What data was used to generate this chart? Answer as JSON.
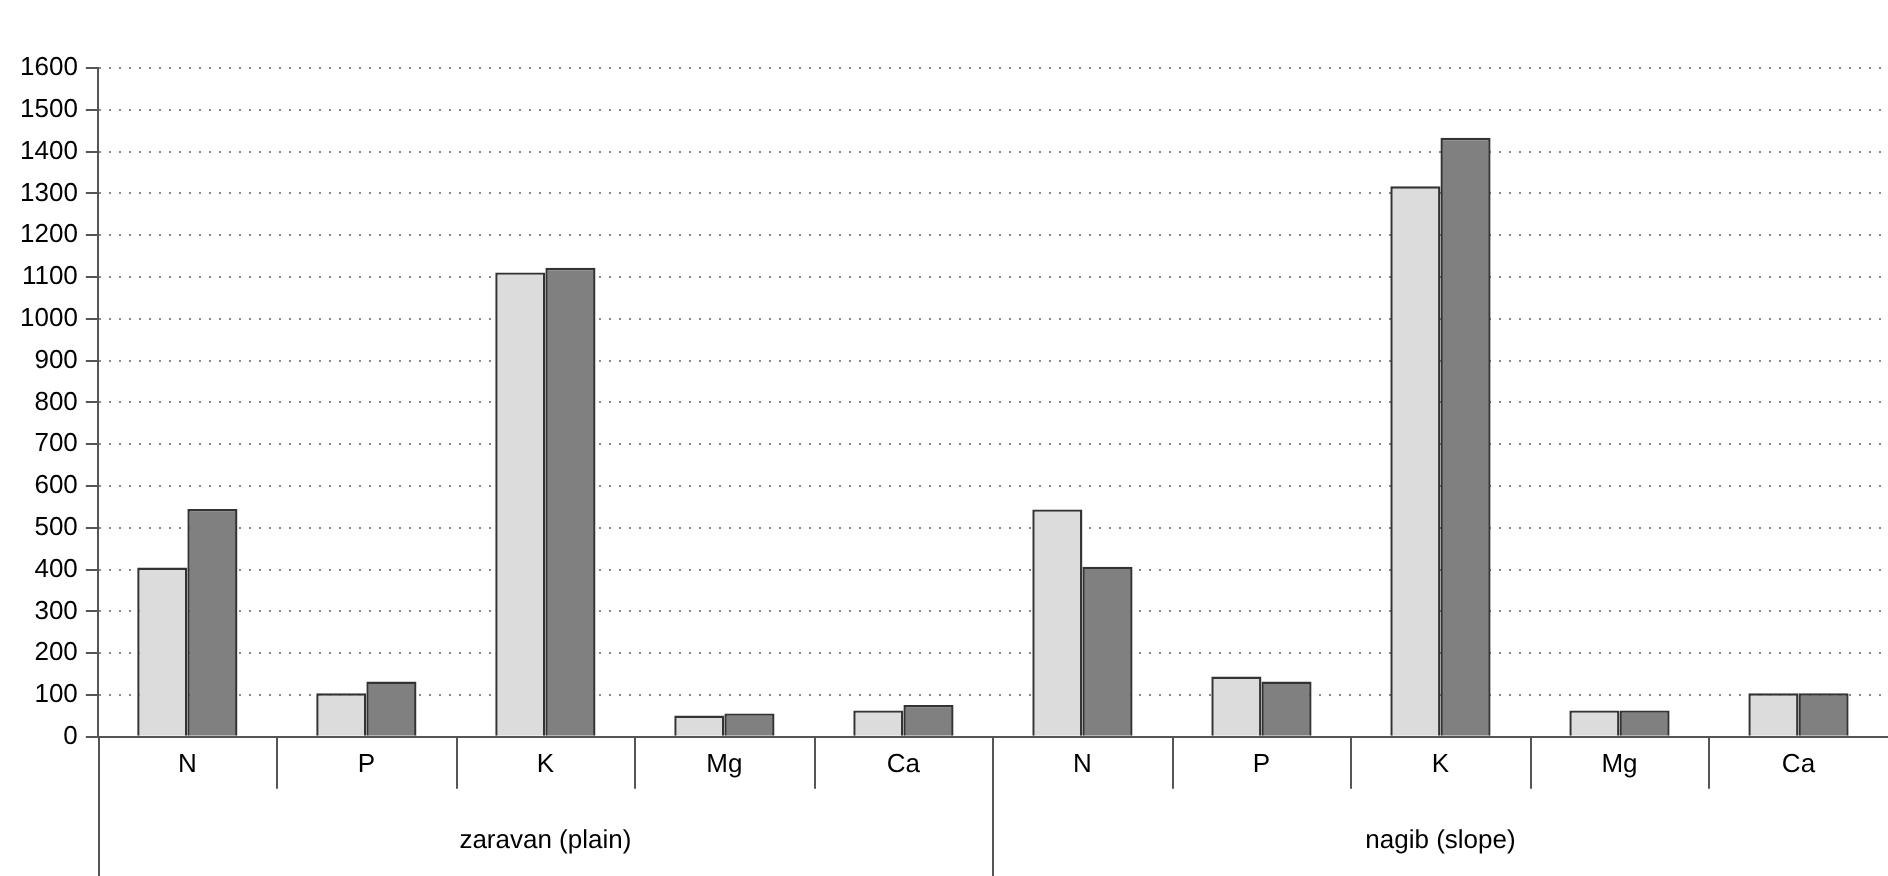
{
  "chart_data": {
    "type": "bar",
    "categories": [
      "N",
      "P",
      "K",
      "Mg",
      "Ca",
      "N",
      "P",
      "K",
      "Mg",
      "Ca"
    ],
    "series": [
      {
        "color": "#dcdcdc",
        "values": [
          405,
          104,
          1111,
          51,
          63,
          544,
          144,
          1317,
          63,
          104
        ]
      },
      {
        "color": "#808080",
        "values": [
          545,
          132,
          1122,
          56,
          76,
          407,
          132,
          1433,
          63,
          104
        ]
      }
    ],
    "ylim": [
      0,
      1600
    ],
    "yticks": [
      0,
      100,
      200,
      300,
      400,
      500,
      600,
      700,
      800,
      900,
      1000,
      1100,
      1200,
      1300,
      1400,
      1500,
      1600
    ],
    "grid": "y",
    "legend": false,
    "annotations": [
      "zaravan (plain)",
      "nagib (slope)"
    ]
  }
}
